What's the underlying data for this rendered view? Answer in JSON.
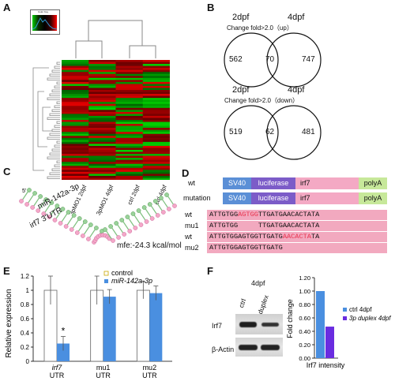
{
  "panels": {
    "a": "A",
    "b": "B",
    "c": "C",
    "d": "D",
    "e": "E",
    "f": "F"
  },
  "panel_a": {
    "color_key": "Color Key",
    "samples": [
      "3pMO1 2dpf",
      "3pMO1 4dpf",
      "ctrl 2dpf",
      "ctrl 4dpf"
    ]
  },
  "panel_b": {
    "up": {
      "left": "2dpf",
      "right": "4dpf",
      "condition": "Change fold>2.0（up）",
      "only_left": "562",
      "overlap": "70",
      "only_right": "747"
    },
    "down": {
      "left": "2dpf",
      "right": "4dpf",
      "condition": "Change fold>2.0（down）",
      "only_left": "519",
      "overlap": "62",
      "only_right": "481"
    }
  },
  "panel_c": {
    "mirna": "miR-142a-3p",
    "utr": "irf7 3'UTR",
    "five_prime": "5'",
    "mfe": "mfe:-24.3 kcal/mol"
  },
  "panel_d": {
    "constructs": [
      {
        "label": "wt",
        "parts": [
          "SV40",
          "luciferase",
          "irf7",
          "polyA"
        ]
      },
      {
        "label": "mutation",
        "parts": [
          "SV40",
          "luciferase",
          "irf7",
          "polyA"
        ]
      }
    ],
    "sequences": [
      {
        "label": "wt",
        "pre": "ATTGTGG",
        "hl": "AGTGG",
        "post": "TTGATGAACACTATA"
      },
      {
        "label": "mu1",
        "pre": "ATTGTGG",
        "hl": "     ",
        "post": "TTGATGAACACTATA"
      },
      {
        "label": "wt",
        "pre": "ATTGTGGAGTGGTTGATG",
        "hl": "AACACTA",
        "post": "TA"
      },
      {
        "label": "mu2",
        "pre": "ATTGTGGAGTGGTTGATG",
        "hl": "",
        "post": ""
      }
    ],
    "colors": {
      "sv40": "#5b8fd6",
      "luciferase": "#7c5cc8",
      "irf7": "#f4a9c4",
      "polya": "#c7e89a",
      "highlight": "#e8344f"
    }
  },
  "panel_e": {
    "ylabel": "Relative expression",
    "legend": [
      "control",
      "miR-142a-3p"
    ],
    "star": "*",
    "colors": {
      "control": "#ffffff",
      "mir": "#4a8fe0"
    },
    "chart_data": {
      "type": "bar",
      "categories": [
        "irf7 UTR",
        "mu1 UTR",
        "mu2 UTR"
      ],
      "category_lines": [
        [
          "irf7",
          "UTR"
        ],
        [
          "mu1",
          "UTR"
        ],
        [
          "mu2",
          "UTR"
        ]
      ],
      "series": [
        {
          "name": "control",
          "values": [
            1.0,
            1.0,
            1.0
          ],
          "errors": [
            0.2,
            0.2,
            0.12
          ]
        },
        {
          "name": "miR-142a-3p",
          "values": [
            0.25,
            0.91,
            0.96
          ],
          "errors": [
            0.1,
            0.1,
            0.1
          ]
        }
      ],
      "ylim": [
        0,
        1.2
      ],
      "yticks": [
        "0",
        "0.2",
        "0.4",
        "0.6",
        "0.8",
        "1",
        "1.2"
      ]
    }
  },
  "panel_f": {
    "timepoint": "4dpf",
    "lanes": [
      "ctrl",
      "duplex"
    ],
    "blots": [
      "Irf7",
      "β-Actin"
    ],
    "ylabel": "Fold change",
    "xlabel": "Irf7 intensity",
    "legend": [
      "ctrl 4dpf",
      "3p duplex 4dpf"
    ],
    "colors": {
      "ctrl": "#4a8fe0",
      "duplex": "#6a2ce0"
    },
    "chart_data": {
      "type": "bar",
      "categories": [
        "ctrl 4dpf",
        "3p duplex 4dpf"
      ],
      "values": [
        1.0,
        0.47
      ],
      "ylim": [
        0,
        1.2
      ],
      "yticks": [
        "0.00",
        "0.20",
        "0.40",
        "0.60",
        "0.80",
        "1.00",
        "1.20"
      ]
    }
  }
}
